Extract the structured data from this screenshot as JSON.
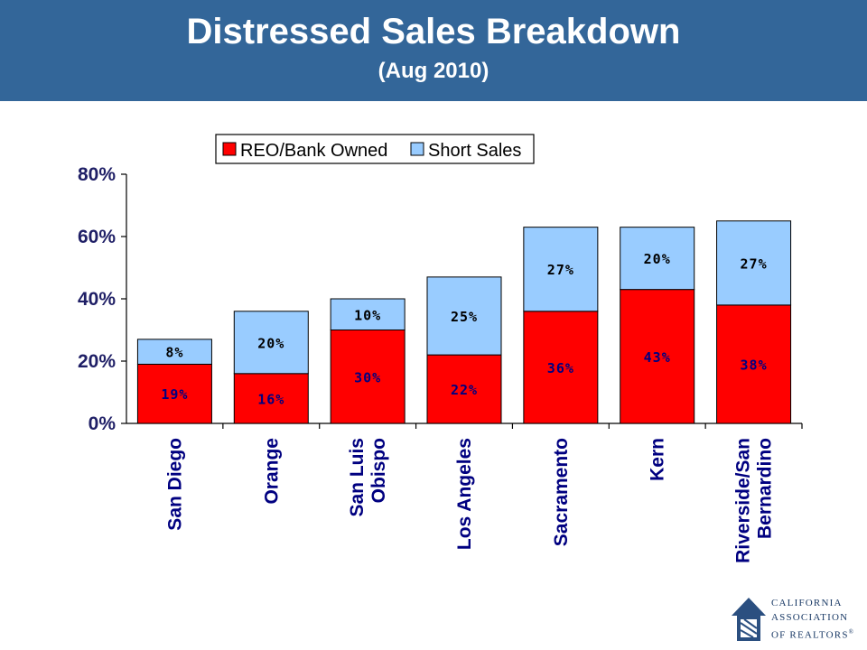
{
  "header": {
    "title": "Distressed Sales Breakdown",
    "subtitle": "(Aug 2010)",
    "background_color": "#336699"
  },
  "chart_data": {
    "type": "bar",
    "stacked": true,
    "categories": [
      "San Diego",
      "Orange",
      "San Luis Obispo",
      "Los Angeles",
      "Sacramento",
      "Kern",
      "Riverside/San Bernardino"
    ],
    "category_label_lines": [
      [
        "San Diego"
      ],
      [
        "Orange"
      ],
      [
        "San Luis",
        "Obispo"
      ],
      [
        "Los Angeles"
      ],
      [
        "Sacramento"
      ],
      [
        "Kern"
      ],
      [
        "Riverside/San",
        "Bernardino"
      ]
    ],
    "series": [
      {
        "name": "REO/Bank Owned",
        "values": [
          19,
          16,
          30,
          22,
          36,
          43,
          38
        ],
        "labels": [
          "19%",
          "16%",
          "30%",
          "22%",
          "36%",
          "43%",
          "38%"
        ],
        "color": "#ff0000"
      },
      {
        "name": "Short Sales",
        "values": [
          8,
          20,
          10,
          25,
          27,
          20,
          27
        ],
        "labels": [
          "8%",
          "20%",
          "10%",
          "25%",
          "27%",
          "20%",
          "27%"
        ],
        "color": "#99ccff"
      }
    ],
    "ylim": [
      0,
      80
    ],
    "yticks": [
      0,
      20,
      40,
      60,
      80
    ],
    "ytick_labels": [
      "0%",
      "20%",
      "40%",
      "60%",
      "80%"
    ],
    "xlabel": "",
    "ylabel": "",
    "legend_position": "top",
    "grid": false
  },
  "logo": {
    "icon": "car-house-icon",
    "lines": [
      "CALIFORNIA",
      "ASSOCIATION",
      "OF REALTORS"
    ],
    "mark": "®"
  }
}
